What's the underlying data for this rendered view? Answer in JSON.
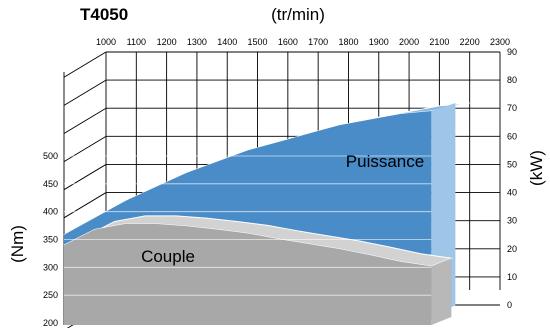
{
  "chart_data": {
    "type": "area",
    "title": "T4050",
    "x_unit": "(tr/min)",
    "left_unit": "(Nm)",
    "right_unit": "(kW)",
    "x": {
      "ticks": [
        1000,
        1100,
        1200,
        1300,
        1400,
        1500,
        1600,
        1700,
        1800,
        1900,
        2000,
        2100,
        2200,
        2300
      ],
      "labels": [
        "1000",
        "1100",
        "1200",
        "1300",
        "1400",
        "1500",
        "1600",
        "1700",
        "1800",
        "1900",
        "2000",
        "2100",
        "2200",
        "2300"
      ],
      "range": [
        1000,
        2300
      ]
    },
    "y_left": {
      "ticks": [
        200,
        250,
        300,
        350,
        400,
        450,
        500
      ],
      "labels": [
        "200",
        "250",
        "300",
        "350",
        "400",
        "450",
        "500"
      ],
      "range": [
        200,
        500
      ]
    },
    "y_right": {
      "ticks": [
        0,
        10,
        20,
        30,
        40,
        50,
        60,
        70,
        80,
        90
      ],
      "labels": [
        "0",
        "10",
        "20",
        "30",
        "40",
        "50",
        "60",
        "70",
        "80",
        "90"
      ],
      "range": [
        0,
        90
      ]
    },
    "series": [
      {
        "name": "Puissance",
        "axis": "right",
        "color": "#4a8cc8",
        "x": [
          1000,
          1100,
          1200,
          1300,
          1400,
          1500,
          1600,
          1700,
          1800,
          1900,
          2000,
          2100,
          2200
        ],
        "y": [
          25,
          31,
          37,
          42,
          47,
          51,
          55,
          58,
          61,
          64,
          66,
          68,
          69
        ]
      },
      {
        "name": "Couple",
        "axis": "left",
        "color": "#a8a8a8",
        "x": [
          1000,
          1100,
          1200,
          1300,
          1400,
          1500,
          1600,
          1700,
          1800,
          1900,
          2000,
          2100,
          2200
        ],
        "y": [
          340,
          368,
          378,
          378,
          374,
          368,
          361,
          351,
          342,
          333,
          322,
          310,
          302
        ]
      }
    ],
    "grid": true,
    "legend": "none"
  }
}
